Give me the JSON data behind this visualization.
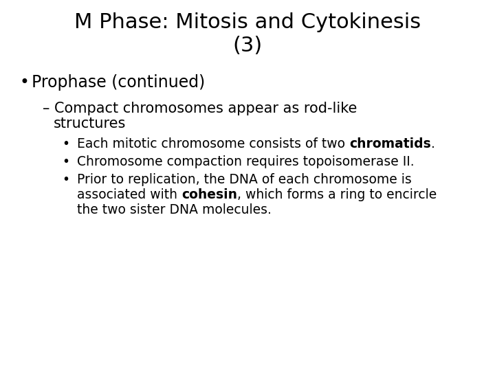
{
  "title_line1": "M Phase: Mitosis and Cytokinesis",
  "title_line2": "(3)",
  "background_color": "#ffffff",
  "text_color": "#000000",
  "title_fontsize": 22,
  "body_fontsize": 15,
  "sub_fontsize": 13.5,
  "bullet1": "Prophase (continued)",
  "sub_bullet_dash": "– Compact chromosomes appear as rod-like",
  "sub_bullet_cont": "  structures",
  "ssb1_pre": "Each mitotic chromosome consists of two ",
  "ssb1_bold": "chromatids",
  "ssb1_post": ".",
  "ssb2": "Chromosome compaction requires topoisomerase II.",
  "ssb3_line1": "Prior to replication, the DNA of each chromosome is",
  "ssb3_line2_pre": "associated with ",
  "ssb3_line2_bold": "cohesin",
  "ssb3_line2_post": ", which forms a ring to encircle",
  "ssb3_line3": "the two sister DNA molecules."
}
